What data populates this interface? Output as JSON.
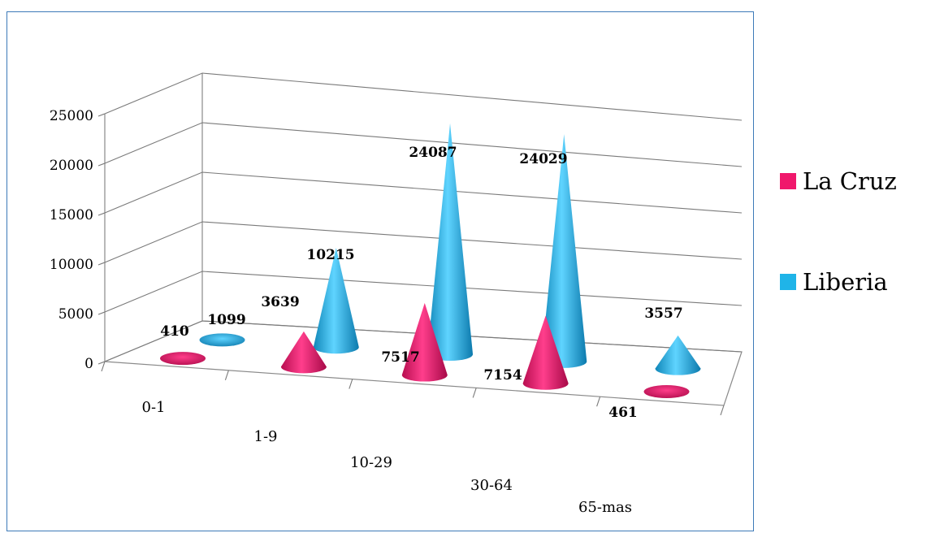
{
  "chart_data": {
    "type": "bar",
    "subtype": "3d-cone",
    "categories": [
      "0-1",
      "1-9",
      "10-29",
      "30-64",
      "65-mas"
    ],
    "series": [
      {
        "name": "La Cruz",
        "values": [
          410,
          3639,
          7517,
          7154,
          461
        ],
        "color": "#f0186c"
      },
      {
        "name": "Liberia",
        "values": [
          1099,
          10215,
          24087,
          24029,
          3557
        ],
        "color": "#1fb4e8"
      }
    ],
    "y_ticks": [
      "0",
      "5000",
      "10000",
      "15000",
      "20000",
      "25000"
    ],
    "ylim": [
      0,
      25000
    ],
    "grid": true,
    "legend_position": "right",
    "data_labels": [
      "410",
      "3639",
      "7517",
      "7154",
      "461",
      "1099",
      "10215",
      "24087",
      "24029",
      "3557"
    ]
  }
}
